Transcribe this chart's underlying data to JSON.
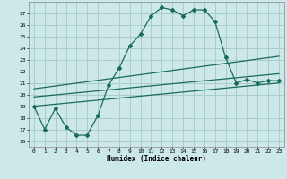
{
  "xlabel": "Humidex (Indice chaleur)",
  "bg_color": "#cce8e8",
  "grid_color": "#aacccc",
  "line_color": "#1a6b5a",
  "xlim": [
    -0.5,
    23.5
  ],
  "ylim": [
    15.5,
    28
  ],
  "xticks": [
    0,
    1,
    2,
    3,
    4,
    5,
    6,
    7,
    8,
    9,
    10,
    11,
    12,
    13,
    14,
    15,
    16,
    17,
    18,
    19,
    20,
    21,
    22,
    23
  ],
  "yticks": [
    16,
    17,
    18,
    19,
    20,
    21,
    22,
    23,
    24,
    25,
    26,
    27
  ],
  "curve1_x": [
    0,
    1,
    2,
    3,
    4,
    5,
    6,
    7,
    8,
    9,
    10,
    11,
    12,
    13,
    14,
    15,
    16,
    17,
    18,
    19,
    20,
    21,
    22,
    23
  ],
  "curve1_y": [
    19,
    17,
    18.8,
    17.2,
    16.5,
    16.5,
    18.2,
    20.8,
    22.3,
    24.2,
    25.2,
    26.8,
    27.5,
    27.3,
    26.8,
    27.3,
    27.3,
    26.3,
    23.2,
    21.0,
    21.3,
    21.0,
    21.2,
    21.2
  ],
  "line1_x": [
    0,
    23
  ],
  "line1_y": [
    19.8,
    21.8
  ],
  "line2_x": [
    0,
    23
  ],
  "line2_y": [
    20.5,
    23.3
  ],
  "line3_x": [
    0,
    23
  ],
  "line3_y": [
    19.0,
    21.0
  ]
}
